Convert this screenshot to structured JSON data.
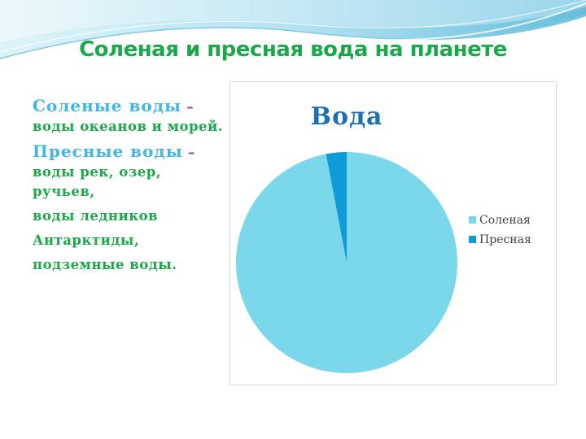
{
  "slide": {
    "title": "Соленая и пресная вода на планете",
    "paragraphs": [
      {
        "term": "Соленые воды",
        "dash": " – ",
        "text": "воды океанов и морей."
      },
      {
        "term": "Пресные воды",
        "dash": " – ",
        "text": "воды рек, озер, ручьев,"
      },
      {
        "term": "",
        "dash": "",
        "text": "воды ледников"
      },
      {
        "term": "",
        "dash": "",
        "text": "Антарктиды,"
      },
      {
        "term": "",
        "dash": "",
        "text": "подземные воды."
      }
    ]
  },
  "colors": {
    "title": "#1aa84a",
    "body_text": "#1aa84a",
    "term": "#3fb5e8",
    "chart_title": "#1f6fb4",
    "wave_light": "#bfe6f1",
    "wave_mid": "#8fd3e6",
    "wave_deep": "#3ea7c9"
  },
  "chart_data": {
    "type": "pie",
    "title": "Вода",
    "categories": [
      "Соленая",
      "Пресная"
    ],
    "values": [
      97,
      3
    ],
    "colors": [
      "#7bd7ea",
      "#0f9bd7"
    ],
    "legend_position": "right"
  }
}
